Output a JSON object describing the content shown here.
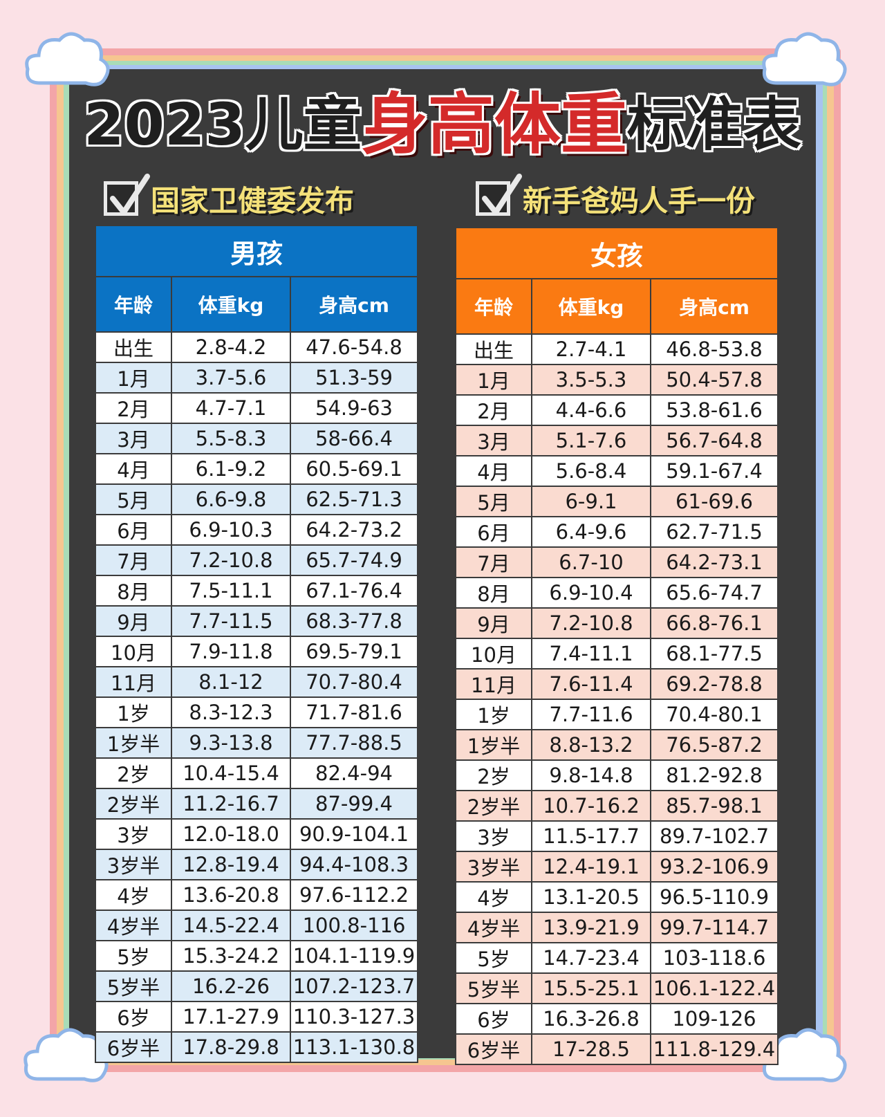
{
  "title": {
    "part1": "2023儿童",
    "part2": "身高体重",
    "part3": "标准表"
  },
  "subtitles": {
    "left": "国家卫健委发布",
    "right": "新手爸妈人手一份"
  },
  "boys": {
    "title": "男孩",
    "headers": [
      "年龄",
      "体重kg",
      "身高cm"
    ],
    "rows": [
      [
        "出生",
        "2.8-4.2",
        "47.6-54.8"
      ],
      [
        "1月",
        "3.7-5.6",
        "51.3-59"
      ],
      [
        "2月",
        "4.7-7.1",
        "54.9-63"
      ],
      [
        "3月",
        "5.5-8.3",
        "58-66.4"
      ],
      [
        "4月",
        "6.1-9.2",
        "60.5-69.1"
      ],
      [
        "5月",
        "6.6-9.8",
        "62.5-71.3"
      ],
      [
        "6月",
        "6.9-10.3",
        "64.2-73.2"
      ],
      [
        "7月",
        "7.2-10.8",
        "65.7-74.9"
      ],
      [
        "8月",
        "7.5-11.1",
        "67.1-76.4"
      ],
      [
        "9月",
        "7.7-11.5",
        "68.3-77.8"
      ],
      [
        "10月",
        "7.9-11.8",
        "69.5-79.1"
      ],
      [
        "11月",
        "8.1-12",
        "70.7-80.4"
      ],
      [
        "1岁",
        "8.3-12.3",
        "71.7-81.6"
      ],
      [
        "1岁半",
        "9.3-13.8",
        "77.7-88.5"
      ],
      [
        "2岁",
        "10.4-15.4",
        "82.4-94"
      ],
      [
        "2岁半",
        "11.2-16.7",
        "87-99.4"
      ],
      [
        "3岁",
        "12.0-18.0",
        "90.9-104.1"
      ],
      [
        "3岁半",
        "12.8-19.4",
        "94.4-108.3"
      ],
      [
        "4岁",
        "13.6-20.8",
        "97.6-112.2"
      ],
      [
        "4岁半",
        "14.5-22.4",
        "100.8-116"
      ],
      [
        "5岁",
        "15.3-24.2",
        "104.1-119.9"
      ],
      [
        "5岁半",
        "16.2-26",
        "107.2-123.7"
      ],
      [
        "6岁",
        "17.1-27.9",
        "110.3-127.3"
      ],
      [
        "6岁半",
        "17.8-29.8",
        "113.1-130.8"
      ]
    ]
  },
  "girls": {
    "title": "女孩",
    "headers": [
      "年龄",
      "体重kg",
      "身高cm"
    ],
    "rows": [
      [
        "出生",
        "2.7-4.1",
        "46.8-53.8"
      ],
      [
        "1月",
        "3.5-5.3",
        "50.4-57.8"
      ],
      [
        "2月",
        "4.4-6.6",
        "53.8-61.6"
      ],
      [
        "3月",
        "5.1-7.6",
        "56.7-64.8"
      ],
      [
        "4月",
        "5.6-8.4",
        "59.1-67.4"
      ],
      [
        "5月",
        "6-9.1",
        "61-69.6"
      ],
      [
        "6月",
        "6.4-9.6",
        "62.7-71.5"
      ],
      [
        "7月",
        "6.7-10",
        "64.2-73.1"
      ],
      [
        "8月",
        "6.9-10.4",
        "65.6-74.7"
      ],
      [
        "9月",
        "7.2-10.8",
        "66.8-76.1"
      ],
      [
        "10月",
        "7.4-11.1",
        "68.1-77.5"
      ],
      [
        "11月",
        "7.6-11.4",
        "69.2-78.8"
      ],
      [
        "1岁",
        "7.7-11.6",
        "70.4-80.1"
      ],
      [
        "1岁半",
        "8.8-13.2",
        "76.5-87.2"
      ],
      [
        "2岁",
        "9.8-14.8",
        "81.2-92.8"
      ],
      [
        "2岁半",
        "10.7-16.2",
        "85.7-98.1"
      ],
      [
        "3岁",
        "11.5-17.7",
        "89.7-102.7"
      ],
      [
        "3岁半",
        "12.4-19.1",
        "93.2-106.9"
      ],
      [
        "4岁",
        "13.1-20.5",
        "96.5-110.9"
      ],
      [
        "4岁半",
        "13.9-21.9",
        "99.7-114.7"
      ],
      [
        "5岁",
        "14.7-23.4",
        "103-118.6"
      ],
      [
        "5岁半",
        "15.5-25.1",
        "106.1-122.4"
      ],
      [
        "6岁",
        "16.3-26.8",
        "109-126"
      ],
      [
        "6岁半",
        "17-28.5",
        "111.8-129.4"
      ]
    ]
  },
  "colors": {
    "boys_header": "#0b73c4",
    "girls_header": "#fa7a12",
    "boys_row_alt": "#dcebf7",
    "girls_row_alt": "#fadbd0",
    "title_red": "#d42a2a",
    "subtitle_yellow": "#f4e179",
    "board": "#3b3b3b",
    "background": "#fbe1e6"
  }
}
